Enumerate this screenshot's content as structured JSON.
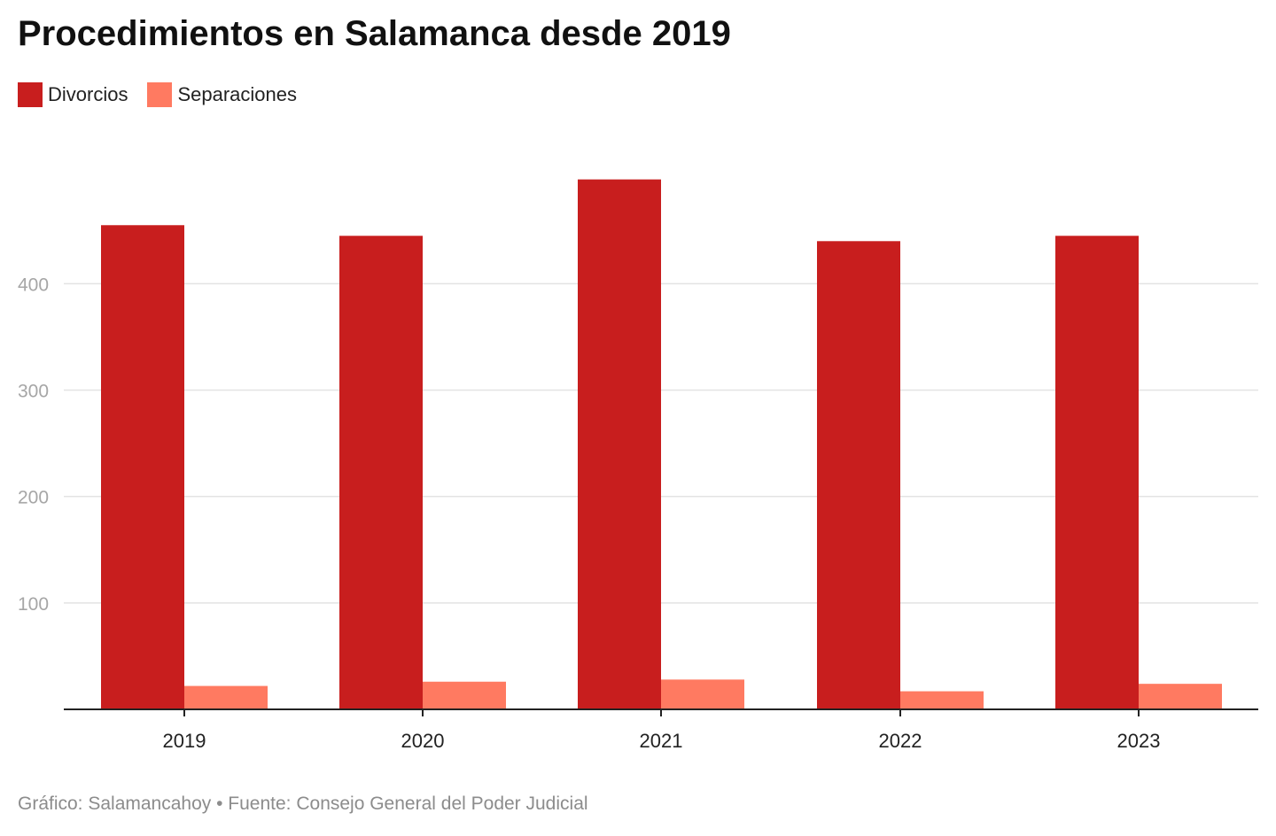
{
  "chart_data": {
    "type": "bar",
    "title": "Procedimientos en Salamanca desde 2019",
    "xlabel": "",
    "ylabel": "",
    "categories": [
      "2019",
      "2020",
      "2021",
      "2022",
      "2023"
    ],
    "series": [
      {
        "name": "Divorcios",
        "color": "#c81e1e",
        "values": [
          455,
          445,
          498,
          440,
          445
        ]
      },
      {
        "name": "Separaciones",
        "color": "#ff7a61",
        "values": [
          22,
          26,
          28,
          17,
          24
        ]
      }
    ],
    "ylim": [
      0,
      500
    ],
    "yticks": [
      100,
      200,
      300,
      400
    ],
    "ytick_labels": [
      "100",
      "200",
      "300",
      "400"
    ],
    "grid": true,
    "legend_position": "top-left"
  },
  "footer": {
    "text": "Gráfico: Salamancahoy • Fuente: Consejo General del Poder Judicial"
  },
  "colors": {
    "grid": "#e3e3e3",
    "axis": "#222222",
    "tick_label": "#a6a6a6",
    "category_label": "#222222"
  }
}
